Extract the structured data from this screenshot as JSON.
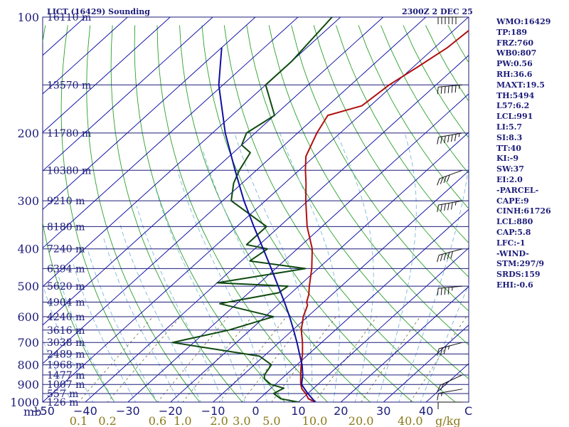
{
  "chart_data": {
    "type": "line",
    "title": "LICT (16429) Sounding",
    "valid_time": "2300Z  2 DEC 25",
    "pressure_unit": "mb",
    "pressure_levels": [
      100,
      200,
      300,
      400,
      500,
      600,
      700,
      800,
      900,
      1000
    ],
    "pressure_tick_labels": [
      "100",
      "200",
      "300",
      "400",
      "500",
      "600",
      "700",
      "800",
      "900",
      "1000"
    ],
    "height_labels": [
      {
        "p": 100,
        "text": "16110 m"
      },
      {
        "p": 150,
        "text": "13570 m"
      },
      {
        "p": 200,
        "text": "11780 m"
      },
      {
        "p": 250,
        "text": "10380 m"
      },
      {
        "p": 300,
        "text": "9210 m"
      },
      {
        "p": 350,
        "text": "8180 m"
      },
      {
        "p": 400,
        "text": "7240 m"
      },
      {
        "p": 450,
        "text": "6394 m"
      },
      {
        "p": 500,
        "text": "5620 m"
      },
      {
        "p": 550,
        "text": "4904 m"
      },
      {
        "p": 600,
        "text": "4240 m"
      },
      {
        "p": 650,
        "text": "3616 m"
      },
      {
        "p": 700,
        "text": "3038 m"
      },
      {
        "p": 750,
        "text": "2489 m"
      },
      {
        "p": 800,
        "text": "1968 m"
      },
      {
        "p": 850,
        "text": "1477 m"
      },
      {
        "p": 900,
        "text": "1007 m"
      },
      {
        "p": 950,
        "text": "557 m"
      },
      {
        "p": 1000,
        "text": "126 m"
      }
    ],
    "xaxis_unit": "C",
    "temperature_ticks": [
      -50,
      -40,
      -30,
      -20,
      -10,
      0,
      10,
      20,
      30,
      40
    ],
    "temperature_tick_labels": [
      "−50",
      "−40",
      "−30",
      "−20",
      "−10",
      "0",
      "10",
      "20",
      "30",
      "40"
    ],
    "mixing_ratio_unit": "g/kg",
    "mixing_ratio_labels": [
      "0.1",
      "0.2",
      "0.6",
      "1.0",
      "2.0",
      "3.0",
      "5.0",
      "10.0",
      "20.0",
      "40.0"
    ],
    "xlim": [
      -50,
      50
    ],
    "ylim": [
      1000,
      100
    ],
    "y_scale": "log",
    "skew_deg_per_decade_lnp": 43.4,
    "series": [
      {
        "name": "temperature",
        "color": "#b01010",
        "points": [
          [
            1017,
            13
          ],
          [
            1000,
            14
          ],
          [
            980,
            11.5
          ],
          [
            950,
            9.5
          ],
          [
            925,
            7.5
          ],
          [
            900,
            6
          ],
          [
            850,
            3.5
          ],
          [
            800,
            1
          ],
          [
            750,
            -1.5
          ],
          [
            700,
            -4.5
          ],
          [
            650,
            -8
          ],
          [
            600,
            -11
          ],
          [
            560,
            -13
          ],
          [
            550,
            -14
          ],
          [
            525,
            -15.5
          ],
          [
            500,
            -17.5
          ],
          [
            450,
            -21.5
          ],
          [
            400,
            -26.5
          ],
          [
            350,
            -33.5
          ],
          [
            300,
            -40.5
          ],
          [
            270,
            -45
          ],
          [
            250,
            -48.5
          ],
          [
            230,
            -52
          ],
          [
            200,
            -55.5
          ],
          [
            180,
            -57.5
          ],
          [
            170,
            -52
          ],
          [
            150,
            -51
          ],
          [
            135,
            -49
          ],
          [
            120,
            -47
          ],
          [
            100,
            -46
          ]
        ]
      },
      {
        "name": "dewpoint",
        "color": "#0f4a0f",
        "points": [
          [
            1017,
            11
          ],
          [
            1000,
            10
          ],
          [
            980,
            5
          ],
          [
            950,
            2
          ],
          [
            920,
            3
          ],
          [
            900,
            -1
          ],
          [
            870,
            -4
          ],
          [
            850,
            -5
          ],
          [
            800,
            -6
          ],
          [
            760,
            -11
          ],
          [
            700,
            -35
          ],
          [
            650,
            -25
          ],
          [
            600,
            -18
          ],
          [
            555,
            -34
          ],
          [
            520,
            -23
          ],
          [
            500,
            -22.5
          ],
          [
            490,
            -40
          ],
          [
            450,
            -23
          ],
          [
            430,
            -38
          ],
          [
            400,
            -37
          ],
          [
            390,
            -43
          ],
          [
            350,
            -43
          ],
          [
            300,
            -58
          ],
          [
            270,
            -62
          ],
          [
            250,
            -64
          ],
          [
            225,
            -66
          ],
          [
            215,
            -70
          ],
          [
            200,
            -72
          ],
          [
            180,
            -70
          ],
          [
            150,
            -80
          ],
          [
            130,
            -80
          ],
          [
            100,
            -82
          ]
        ]
      },
      {
        "name": "parcel",
        "color": "#1010a0",
        "points": [
          [
            1000,
            14
          ],
          [
            950,
            10
          ],
          [
            900,
            6.2
          ],
          [
            850,
            4
          ],
          [
            800,
            1.2
          ],
          [
            750,
            -2.2
          ],
          [
            700,
            -5.8
          ],
          [
            650,
            -9.8
          ],
          [
            600,
            -14.2
          ],
          [
            550,
            -19.2
          ],
          [
            500,
            -24.8
          ],
          [
            450,
            -31
          ],
          [
            400,
            -38
          ],
          [
            350,
            -46
          ],
          [
            300,
            -55
          ],
          [
            250,
            -65
          ],
          [
            200,
            -77
          ],
          [
            150,
            -91
          ],
          [
            120,
            -100
          ]
        ]
      }
    ],
    "wind_barbs": [
      {
        "p": 1000,
        "dir": 270,
        "kt": 10
      },
      {
        "p": 925,
        "dir": 280,
        "kt": 15
      },
      {
        "p": 850,
        "dir": 295,
        "kt": 25
      },
      {
        "p": 700,
        "dir": 285,
        "kt": 35
      },
      {
        "p": 500,
        "dir": 275,
        "kt": 45
      },
      {
        "p": 400,
        "dir": 285,
        "kt": 50
      },
      {
        "p": 300,
        "dir": 280,
        "kt": 55
      },
      {
        "p": 250,
        "dir": 290,
        "kt": 40
      },
      {
        "p": 200,
        "dir": 280,
        "kt": 65
      },
      {
        "p": 150,
        "dir": 275,
        "kt": 70
      },
      {
        "p": 100,
        "dir": 270,
        "kt": 60
      }
    ],
    "grid": true
  },
  "indices": [
    "WMO:16429",
    "TP:189",
    "FRZ:760",
    "WB0:807",
    "PW:0.56",
    "RH:36.6",
    "MAXT:19.5",
    "TH:5494",
    "L57:6.2",
    "LCL:991",
    "LI:5.7",
    "SI:8.3",
    "TT:40",
    "KI:-9",
    "SW:37",
    "EI:2.0",
    "-PARCEL-",
    "CAPE:9",
    "CINH:61726",
    "LCL:880",
    "CAP:5.8",
    "LFC:-1",
    "-WIND-",
    "STM:297/9",
    "SRDS:159",
    "EHI:-0.6"
  ],
  "colors": {
    "isobar": "#1c1c7a",
    "isotherm": "#0000a0",
    "dry_adiabat": "#2ca02c",
    "moist_adiabat": "#7ab8d8",
    "mixing_ratio": "#6b6b3a",
    "frame": "#1c1c7a"
  }
}
